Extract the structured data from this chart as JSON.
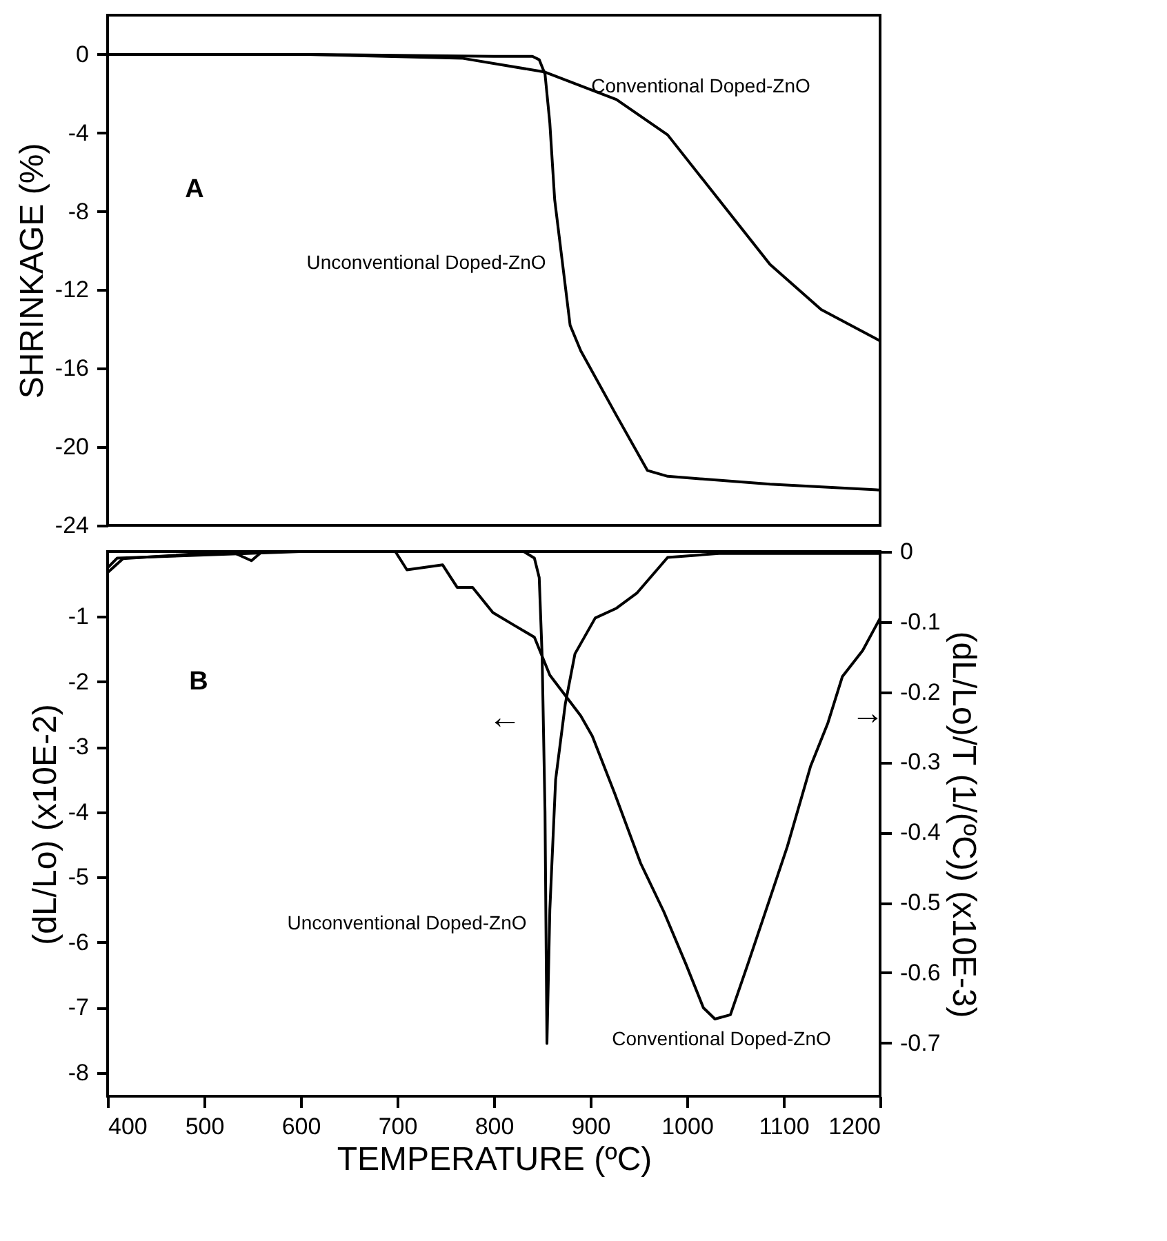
{
  "chart_data": [
    {
      "type": "line",
      "ylabel": "SHRINKAGE (%)",
      "xlim": [
        400,
        1200
      ],
      "xticks": [
        400,
        500,
        600,
        700,
        800,
        900,
        1000,
        1100,
        1200
      ],
      "ylim": [
        -24,
        2
      ],
      "yticks": [
        0,
        -4,
        -8,
        -12,
        -16,
        -20,
        -24
      ],
      "tick_labels": "y",
      "annotations": [
        "A"
      ],
      "series": [
        {
          "name": "Conventional Doped-ZnO",
          "color": "#000000",
          "x": [
            400,
            608,
            768,
            853,
            927,
            980,
            1033,
            1086,
            1139,
            1200
          ],
          "values": [
            0,
            0,
            -0.2,
            -0.9,
            -2.3,
            -4.1,
            -7.4,
            -10.7,
            -13.0,
            -14.6
          ]
        },
        {
          "name": "Unconventional Doped-ZnO",
          "color": "#000000",
          "x": [
            400,
            608,
            800,
            840,
            847,
            853,
            858,
            863,
            879,
            890,
            927,
            959,
            980,
            1086,
            1200
          ],
          "values": [
            0,
            0,
            -0.1,
            -0.1,
            -0.27,
            -1.0,
            -3.5,
            -7.4,
            -13.8,
            -15.1,
            -18.4,
            -21.2,
            -21.5,
            -21.9,
            -22.2
          ]
        }
      ]
    },
    {
      "type": "line",
      "xlabel": "TEMPERATURE (ºC)",
      "ylabel": "(dL/Lo) (x10E-2)",
      "y2label": "(dL/Lo)/T (1/(ºC)) (x10E-3)",
      "xlim": [
        400,
        1200
      ],
      "xticks": [
        400,
        500,
        600,
        700,
        800,
        900,
        1000,
        1100,
        1200
      ],
      "ylim": [
        -8.36,
        0
      ],
      "yticks": [
        -1,
        -2,
        -3,
        -4,
        -5,
        -6,
        -7,
        -8
      ],
      "y2lim": [
        -0.776,
        0
      ],
      "y2ticks": [
        0,
        -0.1,
        -0.2,
        -0.3,
        -0.4,
        -0.5,
        -0.6,
        -0.7
      ],
      "annotations": [
        "B",
        "←",
        "→"
      ],
      "series": [
        {
          "name": "Unconventional Doped-ZnO",
          "color": "#000000",
          "axis": "y",
          "x": [
            400,
            410,
            600,
            831,
            842,
            847,
            850,
            853,
            855,
            858,
            864,
            874,
            884,
            905,
            927,
            948,
            980,
            1033,
            1200
          ],
          "values": [
            -0.25,
            -0.1,
            0,
            0,
            -0.1,
            -0.4,
            -1.6,
            -4.0,
            -7.55,
            -5.5,
            -3.5,
            -2.34,
            -1.57,
            -1.02,
            -0.87,
            -0.64,
            -0.09,
            -0.03,
            -0.03
          ]
        },
        {
          "name": "Conventional Doped-ZnO",
          "color": "#000000",
          "axis": "y2",
          "x": [
            400,
            416,
            528,
            549,
            560,
            698,
            710,
            747,
            762,
            778,
            799,
            821,
            842,
            858,
            890,
            902,
            925,
            952,
            976,
            999,
            1017,
            1029,
            1045,
            1063,
            1086,
            1104,
            1128,
            1146,
            1161,
            1182,
            1200
          ],
          "values": [
            -0.03,
            -0.01,
            0,
            -0.013,
            0,
            0,
            -0.026,
            -0.019,
            -0.051,
            -0.051,
            -0.087,
            -0.105,
            -0.122,
            -0.176,
            -0.234,
            -0.263,
            -0.344,
            -0.444,
            -0.513,
            -0.588,
            -0.65,
            -0.666,
            -0.66,
            -0.588,
            -0.494,
            -0.42,
            -0.306,
            -0.244,
            -0.178,
            -0.141,
            -0.095
          ]
        }
      ]
    }
  ]
}
